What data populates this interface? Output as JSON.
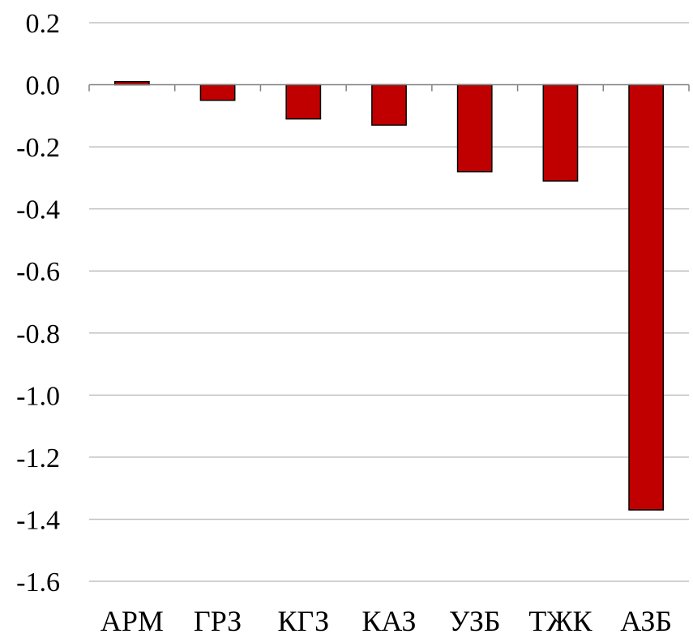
{
  "chart_data": {
    "type": "bar",
    "categories": [
      "АРМ",
      "ГРЗ",
      "КГЗ",
      "КАЗ",
      "УЗБ",
      "ТЖК",
      "АЗБ"
    ],
    "values": [
      0.01,
      -0.05,
      -0.11,
      -0.13,
      -0.28,
      -0.31,
      -1.37
    ],
    "title": "",
    "xlabel": "",
    "ylabel": "",
    "ylim": [
      -1.6,
      0.2
    ],
    "yticks": [
      0.2,
      0.0,
      -0.2,
      -0.4,
      -0.6,
      -0.8,
      -1.0,
      -1.2,
      -1.4,
      -1.6
    ],
    "ytick_labels": [
      "0.2",
      "0.0",
      "-0.2",
      "-0.4",
      "-0.6",
      "-0.8",
      "-1.0",
      "-1.2",
      "-1.4",
      "-1.6"
    ],
    "grid": true,
    "legend": "none",
    "bar_color": "#C00000",
    "bar_edge_color": "#000000",
    "gridline_color": "#C0C0C0"
  }
}
